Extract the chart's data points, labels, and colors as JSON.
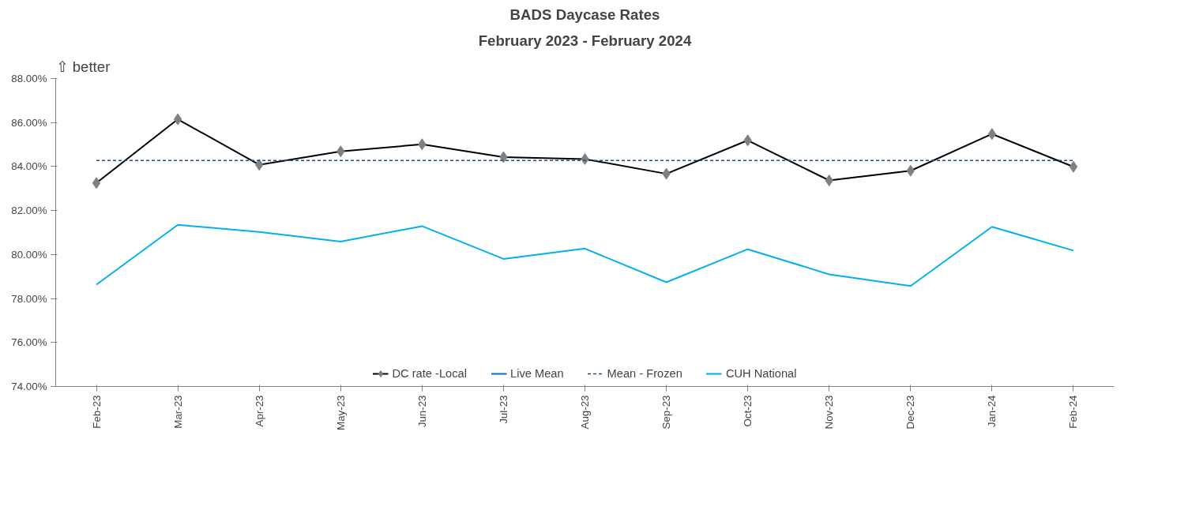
{
  "chart_data": {
    "type": "line",
    "title": "BADS Daycase Rates",
    "subtitle": "February 2023 - February 2024",
    "annotations": [
      "⇧ better"
    ],
    "categories": [
      "Feb-23",
      "Mar-23",
      "Apr-23",
      "May-23",
      "Jun-23",
      "Jul-23",
      "Aug-23",
      "Sep-23",
      "Oct-23",
      "Nov-23",
      "Dec-23",
      "Jan-24",
      "Feb-24"
    ],
    "series": [
      {
        "name": "DC rate -Local",
        "color": "#000000",
        "marker": "diamond",
        "line_style": "solid",
        "values": [
          83.25,
          86.15,
          84.08,
          84.69,
          85.01,
          84.43,
          84.34,
          83.67,
          85.19,
          83.37,
          83.81,
          85.48,
          83.99
        ]
      },
      {
        "name": "Live Mean",
        "color": "#0070c0",
        "marker": "none",
        "line_style": "solid",
        "values": [
          null,
          null,
          null,
          null,
          null,
          null,
          null,
          null,
          null,
          null,
          null,
          null,
          null
        ]
      },
      {
        "name": "Mean - Frozen",
        "color": "#1f4e79",
        "marker": "none",
        "line_style": "dashed",
        "values": [
          84.28,
          84.28,
          84.28,
          84.28,
          84.28,
          84.28,
          84.28,
          84.28,
          84.28,
          84.28,
          84.28,
          84.28,
          84.28
        ]
      },
      {
        "name": "CUH National",
        "color": "#00b0f0",
        "marker": "none",
        "line_style": "solid",
        "values": [
          78.63,
          81.35,
          81.03,
          80.59,
          81.29,
          79.8,
          80.27,
          78.74,
          80.24,
          79.1,
          78.57,
          81.26,
          80.18
        ]
      }
    ],
    "ylim": [
      74,
      88
    ],
    "yticks": [
      {
        "value": 74,
        "label": "74.00%"
      },
      {
        "value": 76,
        "label": "76.00%"
      },
      {
        "value": 78,
        "label": "78.00%"
      },
      {
        "value": 80,
        "label": "80.00%"
      },
      {
        "value": 82,
        "label": "82.00%"
      },
      {
        "value": 84,
        "label": "84.00%"
      },
      {
        "value": 86,
        "label": "86.00%"
      },
      {
        "value": 88,
        "label": "88.00%"
      }
    ],
    "grid": false,
    "legend": "bottom"
  }
}
